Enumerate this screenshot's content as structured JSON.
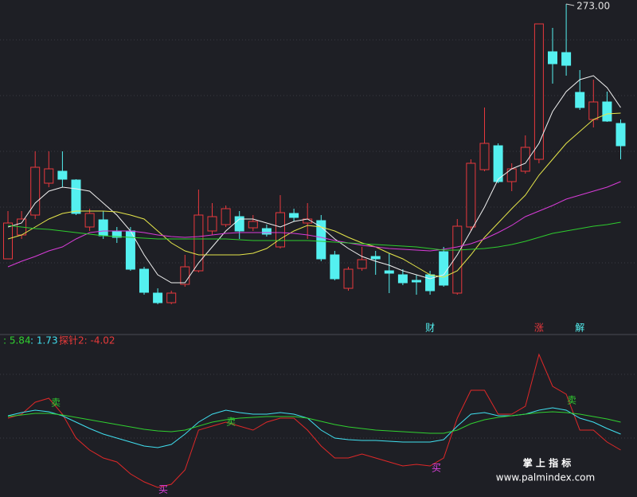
{
  "chart_data": [
    {
      "type": "candlestick",
      "open": [
        209,
        215,
        220,
        228,
        231,
        228.8,
        217,
        218.8,
        216,
        216,
        206.4,
        200.4,
        198,
        202.6,
        206,
        216,
        217.6,
        219.6,
        216.8,
        216.6,
        212,
        220.4,
        218,
        218.6,
        210,
        201.6,
        206.6,
        209.6,
        206,
        205,
        203.6,
        205,
        210.8,
        200.4,
        217,
        231.4,
        237.4,
        228.4,
        231,
        234,
        261,
        260.8,
        250.8,
        244,
        248.4,
        243
      ],
      "high": [
        221,
        221,
        236,
        236,
        236,
        229,
        221.6,
        221,
        217,
        217,
        207,
        201.6,
        201,
        210,
        226.4,
        223,
        222.4,
        221,
        220,
        217.6,
        225,
        221.6,
        223,
        220,
        211,
        207,
        212,
        211,
        210.4,
        206.4,
        205,
        206,
        212,
        219,
        234,
        247,
        238,
        233,
        240,
        268,
        267,
        273,
        256.4,
        254,
        251,
        244
      ],
      "low": [
        209,
        214,
        219,
        227,
        227,
        220,
        216,
        214,
        213,
        206,
        200,
        197.6,
        197.6,
        202,
        205.6,
        215,
        217,
        214,
        216,
        214.6,
        211.6,
        218.4,
        214,
        208.4,
        203.6,
        201,
        206,
        205,
        200.4,
        202.4,
        200,
        200,
        202,
        200,
        216,
        231,
        228,
        226,
        230.4,
        233,
        253,
        255,
        246.4,
        242,
        243.4,
        234
      ],
      "close": [
        218,
        219,
        232,
        231.6,
        229,
        220.4,
        220.4,
        214.8,
        214.4,
        206.4,
        200.6,
        198,
        200.4,
        207,
        220,
        219.6,
        221.6,
        216,
        218.4,
        215.2,
        220.6,
        219.4,
        219,
        209,
        204,
        206.4,
        208.8,
        209,
        205.4,
        203,
        203.2,
        201,
        202.4,
        217.2,
        233,
        238,
        228.4,
        231.6,
        237,
        268,
        258,
        257.6,
        247,
        248.4,
        243.6,
        237.4
      ],
      "up_color": "#e8383d",
      "down_color": "#54f0f0",
      "series": [
        {
          "color": "#f0f0f0",
          "values": [
            217,
            218,
            223,
            226,
            227,
            226.6,
            226,
            223,
            220,
            216,
            210,
            205,
            203,
            203,
            208,
            212,
            216,
            219,
            219,
            218,
            217,
            218.4,
            219,
            217,
            214,
            211.6,
            209.6,
            208.4,
            207.4,
            206,
            205,
            204,
            205,
            210,
            216,
            222,
            229,
            231.6,
            233,
            238,
            246,
            251,
            254,
            255,
            252,
            247
          ]
        },
        {
          "color": "#e6e64a",
          "values": [
            214,
            215,
            217,
            219,
            220.4,
            221,
            221,
            221,
            220.8,
            220,
            219,
            216,
            213,
            211,
            210,
            210,
            210,
            210,
            210.4,
            211.6,
            214,
            216,
            217.4,
            217,
            216,
            214.4,
            213,
            212,
            210.4,
            209,
            207,
            205,
            204.4,
            206,
            210,
            214.4,
            218,
            221.6,
            225,
            230,
            234,
            238,
            241,
            244,
            245.4,
            245.6
          ]
        },
        {
          "color": "#d83cd8",
          "values": [
            207,
            208.4,
            209.6,
            211,
            212,
            214,
            215.6,
            216,
            216,
            216,
            215.6,
            215,
            214.6,
            214.4,
            214.6,
            215,
            215.4,
            215.6,
            215.6,
            215.6,
            215.6,
            215.4,
            215,
            214.4,
            213.6,
            213,
            212.4,
            212,
            211.6,
            211.4,
            211.2,
            211,
            211.4,
            212,
            212.8,
            214,
            215.6,
            217.4,
            219.6,
            221,
            222.4,
            224,
            225,
            226,
            227,
            228.4
          ]
        },
        {
          "color": "#2ecc2e",
          "values": [
            217.4,
            217,
            216.6,
            216.4,
            216,
            215.6,
            215.2,
            214.8,
            214.6,
            214.4,
            214.2,
            214,
            214,
            214,
            214,
            214,
            214,
            213.8,
            213.6,
            213.6,
            213.6,
            213.6,
            213.6,
            213.4,
            213.2,
            213,
            212.8,
            212.6,
            212.4,
            212.2,
            212,
            211.6,
            211.2,
            211.2,
            211.4,
            211.6,
            212,
            212.6,
            213.4,
            214.4,
            215.4,
            216,
            216.6,
            217.2,
            217.6,
            218.2
          ]
        }
      ],
      "ylim": [
        190,
        274
      ],
      "annotations": [
        {
          "label": "273.00",
          "value": 273
        }
      ],
      "events": [
        "财",
        "涨",
        "解"
      ]
    },
    {
      "type": "line",
      "series": [
        {
          "color": "#e02828",
          "values": [
            0,
            0.5,
            2,
            2.5,
            0.5,
            -2.5,
            -4,
            -5,
            -5.5,
            -7,
            -8,
            -8.7,
            -8.3,
            -6.5,
            -1.5,
            -1,
            -0.5,
            -1,
            -1.5,
            -0.5,
            0,
            0,
            -1.5,
            -3.5,
            -5,
            -5,
            -4.5,
            -5,
            -5.5,
            -6,
            -5.8,
            -6,
            -5,
            0,
            3.5,
            3.5,
            0.5,
            0.5,
            1.5,
            8,
            4,
            3,
            -1.5,
            -1.5,
            -3,
            -4
          ]
        },
        {
          "color": "#40e0f0",
          "values": [
            0.3,
            0.7,
            1,
            0.8,
            0.3,
            -0.5,
            -1.3,
            -2,
            -2.5,
            -3,
            -3.5,
            -3.7,
            -3.3,
            -2,
            -0.5,
            0.5,
            1,
            0.7,
            0.5,
            0.5,
            0.7,
            0.5,
            0,
            -1.5,
            -2.5,
            -2.7,
            -2.8,
            -2.8,
            -2.9,
            -3,
            -3,
            -3,
            -2.7,
            -1,
            0.5,
            0.7,
            0.3,
            0.3,
            0.5,
            1,
            1.3,
            1,
            0,
            -0.5,
            -1.3,
            -2
          ]
        },
        {
          "color": "#30d030",
          "values": [
            0.2,
            0.4,
            0.6,
            0.6,
            0.4,
            0.1,
            -0.2,
            -0.5,
            -0.8,
            -1.1,
            -1.4,
            -1.6,
            -1.7,
            -1.5,
            -1,
            -0.5,
            -0.2,
            0,
            0.1,
            0.2,
            0.2,
            0.2,
            0,
            -0.4,
            -0.8,
            -1.1,
            -1.3,
            -1.5,
            -1.6,
            -1.7,
            -1.8,
            -1.9,
            -1.9,
            -1.5,
            -0.7,
            -0.2,
            0.1,
            0.3,
            0.5,
            0.7,
            0.8,
            0.7,
            0.5,
            0.2,
            -0.1,
            -0.5
          ]
        }
      ],
      "ylim": [
        -9.5,
        10
      ],
      "readouts": [
        ": 5.84",
        ": 1.73",
        "探针2: -4.02"
      ],
      "signals": [
        "卖",
        "卖",
        "卖",
        "买",
        "买"
      ]
    }
  ],
  "watermark": {
    "title": "掌 上 指 标",
    "url": "www.palmindex.com"
  }
}
